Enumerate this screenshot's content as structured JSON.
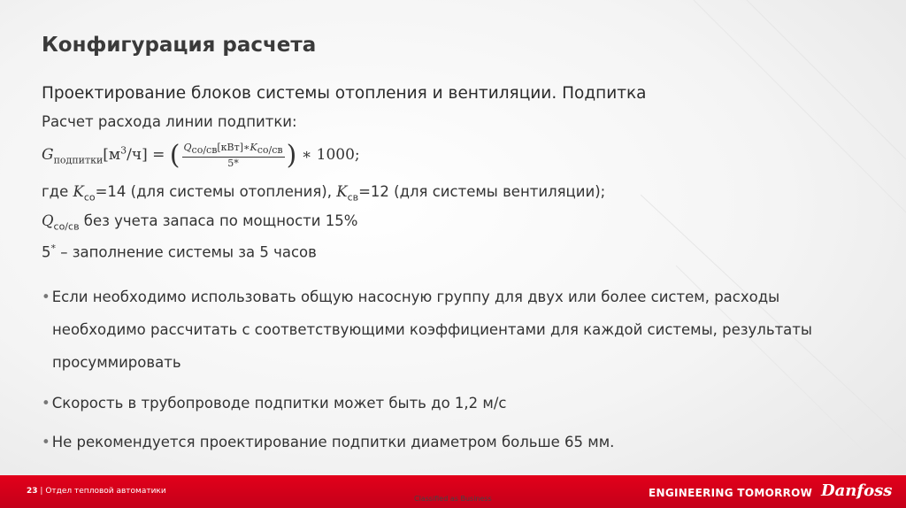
{
  "header": {
    "title": "Конфигурация расчета"
  },
  "subtitle": "Проектирование блоков системы отопления и вентиляции. Подпитка",
  "intro": "Расчет расхода линии подпитки:",
  "formula": {
    "g": "G",
    "g_sub": "подпитки",
    "unit_open": "[м",
    "unit_sup": "3",
    "unit_close": "/ч] =",
    "paren_open": "(",
    "num_q": "Q",
    "num_q_sub": "со/св",
    "num_unit": "[кВт]∗",
    "num_k": "K",
    "num_k_sub": "со/св",
    "den": "5*",
    "paren_close": ")",
    "tail": "∗ 1000;"
  },
  "coef_line": {
    "where": "где ",
    "k1": "K",
    "k1_sub": "со",
    "k1_text": "=14 (для системы отопления), ",
    "k2": "K",
    "k2_sub": "св",
    "k2_text": "=12 (для системы вентиляции);"
  },
  "q_line": {
    "q": "Q",
    "q_sub": "со/св",
    "text": " без учета запаса по мощности 15%"
  },
  "fill_line": {
    "five": "5",
    "star": "*",
    "text": " – заполнение системы за 5 часов"
  },
  "bullets": [
    "Если необходимо использовать общую насосную группу для двух или более систем, расходы необходимо рассчитать с соответствующими коэффициентами для каждой системы, результаты просуммировать",
    "Скорость в трубопроводе подпитки может быть до 1,2 м/с",
    "Не рекомендуется проектирование подпитки диаметром больше 65 мм."
  ],
  "footer": {
    "page": "23",
    "separator": "|",
    "department": "Отдел тепловой автоматики",
    "classification": "Classified as Business",
    "slogan": "ENGINEERING TOMORROW",
    "logo": "Danfoss"
  }
}
